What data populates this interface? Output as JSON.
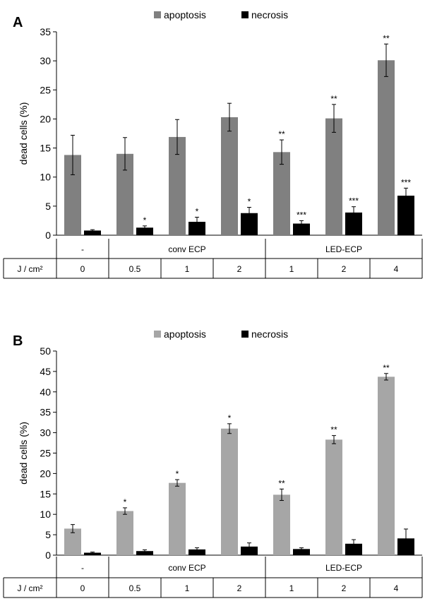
{
  "chart_data": [
    {
      "panel_label": "A",
      "type": "bar",
      "ylabel": "dead cells (%)",
      "ylim": [
        0,
        35
      ],
      "yticks": [
        0,
        5,
        10,
        15,
        20,
        25,
        30,
        35
      ],
      "legend": [
        {
          "name": "apoptosis",
          "color": "#808080"
        },
        {
          "name": "necrosis",
          "color": "#000000"
        }
      ],
      "categories": [
        "0",
        "0.5",
        "1",
        "2",
        "1",
        "2",
        "4"
      ],
      "groups": [
        {
          "label": "-",
          "span": 1
        },
        {
          "label": "conv ECP",
          "span": 3
        },
        {
          "label": "LED-ECP",
          "span": 3
        }
      ],
      "row_label": "J / cm²",
      "series": [
        {
          "name": "apoptosis",
          "values": [
            13.8,
            14.0,
            16.9,
            20.3,
            14.3,
            20.1,
            30.1
          ],
          "errors": [
            3.4,
            2.8,
            3.0,
            2.4,
            2.1,
            2.4,
            2.8
          ],
          "significance": [
            "",
            "",
            "",
            "",
            "**",
            "**",
            "**"
          ]
        },
        {
          "name": "necrosis",
          "values": [
            0.8,
            1.3,
            2.3,
            3.8,
            2.0,
            3.9,
            6.8
          ],
          "errors": [
            0.15,
            0.3,
            0.8,
            1.0,
            0.5,
            1.0,
            1.3
          ],
          "significance": [
            "",
            "*",
            "*",
            "*",
            "***",
            "***",
            "***"
          ]
        }
      ]
    },
    {
      "panel_label": "B",
      "type": "bar",
      "ylabel": "dead cells (%)",
      "ylim": [
        0,
        50
      ],
      "yticks": [
        0,
        5,
        10,
        15,
        20,
        25,
        30,
        35,
        40,
        45,
        50
      ],
      "legend": [
        {
          "name": "apoptosis",
          "color": "#a6a6a6"
        },
        {
          "name": "necrosis",
          "color": "#000000"
        }
      ],
      "categories": [
        "0",
        "0.5",
        "1",
        "2",
        "1",
        "2",
        "4"
      ],
      "groups": [
        {
          "label": "-",
          "span": 1
        },
        {
          "label": "conv ECP",
          "span": 3
        },
        {
          "label": "LED-ECP",
          "span": 3
        }
      ],
      "row_label": "J / cm²",
      "series": [
        {
          "name": "apoptosis",
          "values": [
            6.5,
            10.8,
            17.7,
            31.0,
            14.8,
            28.3,
            43.7
          ],
          "errors": [
            1.0,
            0.8,
            0.8,
            1.2,
            1.4,
            1.0,
            0.8
          ],
          "significance": [
            "",
            "*",
            "*",
            "*",
            "**",
            "**",
            "**"
          ]
        },
        {
          "name": "necrosis",
          "values": [
            0.6,
            1.0,
            1.4,
            2.1,
            1.5,
            2.8,
            4.1
          ],
          "errors": [
            0.15,
            0.3,
            0.4,
            0.9,
            0.3,
            1.0,
            2.3
          ],
          "significance": [
            "",
            "",
            "",
            "",
            "",
            "",
            ""
          ]
        }
      ]
    }
  ]
}
